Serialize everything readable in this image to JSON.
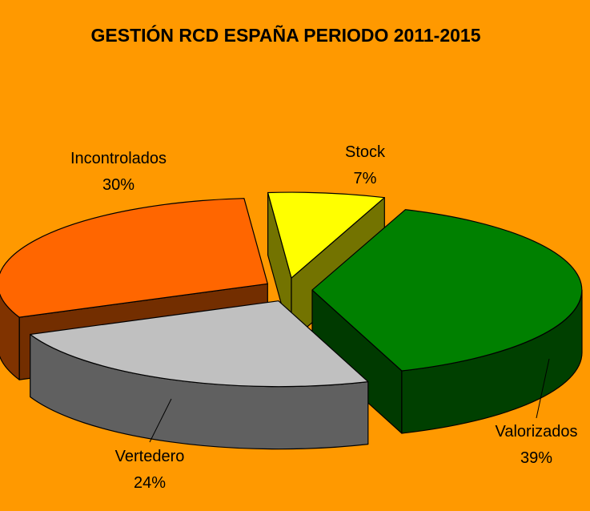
{
  "chart_data": {
    "type": "pie",
    "title": "GESTIÓN RCD ESPAÑA PERIODO 2011-2015",
    "categories": [
      "Stock",
      "Valorizados",
      "Vertedero",
      "Incontrolados"
    ],
    "values": [
      7,
      39,
      24,
      30
    ],
    "labels": [
      {
        "name": "Stock",
        "value_text": "7%"
      },
      {
        "name": "Valorizados",
        "value_text": "39%"
      },
      {
        "name": "Vertedero",
        "value_text": "24%"
      },
      {
        "name": "Incontrolados",
        "value_text": "30%"
      }
    ],
    "colors": {
      "background": "#FF9900",
      "Stock": "#FFFF00",
      "Valorizados": "#008000",
      "Vertedero": "#C0C0C0",
      "Incontrolados": "#FF6600"
    },
    "style": "3d-exploded",
    "legend": "none"
  }
}
